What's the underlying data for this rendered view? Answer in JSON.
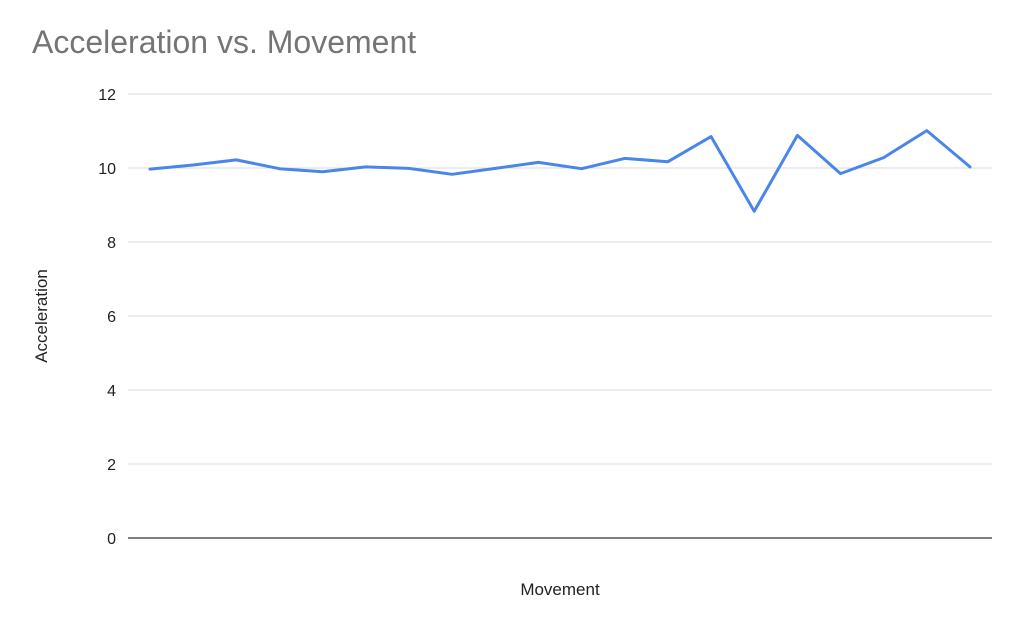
{
  "chart_data": {
    "type": "line",
    "title": "Acceleration vs. Movement",
    "xlabel": "Movement",
    "ylabel": "Acceleration",
    "ylim": [
      0,
      12
    ],
    "yticks": [
      "0",
      "2",
      "4",
      "6",
      "8",
      "10",
      "12"
    ],
    "grid": true,
    "legend": "none",
    "series": [
      {
        "color": "#4a86e8",
        "values": [
          9.97,
          10.08,
          10.22,
          9.98,
          9.9,
          10.03,
          9.99,
          9.83,
          9.99,
          10.15,
          9.98,
          10.26,
          10.17,
          10.85,
          8.83,
          10.88,
          9.85,
          10.28,
          11.01,
          10.03
        ]
      }
    ]
  }
}
